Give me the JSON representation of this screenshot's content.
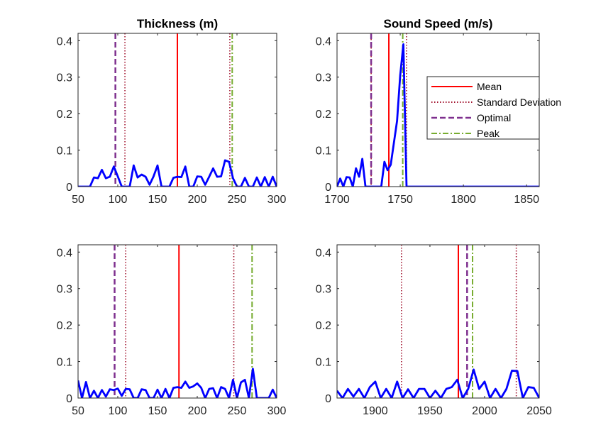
{
  "chart_data": [
    {
      "type": "line",
      "title": "Thickness (m)",
      "xlim": [
        50,
        300
      ],
      "ylim": [
        0,
        0.42
      ],
      "xticks": [
        50,
        100,
        150,
        200,
        250,
        300
      ],
      "yticks": [
        0,
        0.1,
        0.2,
        0.3,
        0.4
      ],
      "x": [
        50,
        55,
        60,
        65,
        70,
        75,
        80,
        85,
        90,
        95,
        100,
        105,
        110,
        115,
        120,
        125,
        130,
        135,
        140,
        145,
        150,
        155,
        160,
        165,
        170,
        175,
        180,
        185,
        190,
        195,
        200,
        205,
        210,
        215,
        220,
        225,
        230,
        235,
        240,
        245,
        250,
        255,
        260,
        265,
        270,
        275,
        280,
        285,
        290,
        295,
        300
      ],
      "y": [
        0,
        0,
        0,
        0,
        0.025,
        0.023,
        0.046,
        0.023,
        0.027,
        0.055,
        0.028,
        0,
        0,
        0,
        0.058,
        0.025,
        0.033,
        0.027,
        0.005,
        0.028,
        0.058,
        0,
        0,
        0,
        0.024,
        0.027,
        0.026,
        0.055,
        0,
        0,
        0.028,
        0.027,
        0.005,
        0.027,
        0.05,
        0.027,
        0.028,
        0.072,
        0.068,
        0.023,
        0,
        0,
        0.024,
        0,
        0,
        0.025,
        0,
        0.026,
        0,
        0.027,
        0
      ],
      "vlines": [
        {
          "kind": "mean",
          "x": 175
        },
        {
          "kind": "std",
          "x": 109
        },
        {
          "kind": "std",
          "x": 241
        },
        {
          "kind": "optimal",
          "x": 97
        },
        {
          "kind": "peak",
          "x": 244
        }
      ]
    },
    {
      "type": "line",
      "title": "Sound Speed (m/s)",
      "xlim": [
        1700,
        1860
      ],
      "ylim": [
        0,
        0.42
      ],
      "xticks": [
        1700,
        1750,
        1800,
        1850
      ],
      "yticks": [
        0,
        0.1,
        0.2,
        0.3,
        0.4
      ],
      "x": [
        1700,
        1702.5,
        1705,
        1707.5,
        1710,
        1712.5,
        1715,
        1717.5,
        1720,
        1722.5,
        1725,
        1727.5,
        1730,
        1732.5,
        1735,
        1737.5,
        1740,
        1742.5,
        1745,
        1747.5,
        1750,
        1752.5,
        1755,
        1757.5,
        1760,
        1770,
        1780,
        1800,
        1820,
        1840,
        1860
      ],
      "y": [
        0,
        0.022,
        0,
        0.026,
        0.025,
        0,
        0.05,
        0.027,
        0.076,
        0,
        0,
        0,
        0,
        0,
        0,
        0.068,
        0.045,
        0.06,
        0.12,
        0.18,
        0.305,
        0.39,
        0,
        0,
        0,
        0,
        0,
        0,
        0,
        0,
        0
      ],
      "vlines": [
        {
          "kind": "mean",
          "x": 1741
        },
        {
          "kind": "std",
          "x": 1727
        },
        {
          "kind": "std",
          "x": 1755
        },
        {
          "kind": "optimal",
          "x": 1727
        },
        {
          "kind": "peak",
          "x": 1752
        }
      ],
      "legend": {
        "location": "top-right",
        "entries": [
          "Mean",
          "Standard Deviation",
          "Optimal",
          "Peak"
        ]
      }
    },
    {
      "type": "line",
      "title": "",
      "xlim": [
        50,
        300
      ],
      "ylim": [
        0,
        0.42
      ],
      "xticks": [
        50,
        100,
        150,
        200,
        250,
        300
      ],
      "yticks": [
        0,
        0.1,
        0.2,
        0.3,
        0.4
      ],
      "x": [
        50,
        55,
        60,
        65,
        70,
        75,
        80,
        85,
        90,
        95,
        100,
        105,
        110,
        115,
        120,
        125,
        130,
        135,
        140,
        145,
        150,
        155,
        160,
        165,
        170,
        175,
        180,
        185,
        190,
        195,
        200,
        205,
        210,
        215,
        220,
        225,
        230,
        235,
        240,
        245,
        250,
        255,
        260,
        265,
        270,
        275,
        280,
        285,
        290,
        295,
        300
      ],
      "y": [
        0.048,
        0,
        0.044,
        0,
        0.02,
        0,
        0.022,
        0.004,
        0.024,
        0.022,
        0.026,
        0.006,
        0.025,
        0.024,
        0,
        0,
        0.024,
        0.022,
        0,
        0,
        0.023,
        0,
        0.025,
        0,
        0.028,
        0.03,
        0.028,
        0.045,
        0.028,
        0.032,
        0.04,
        0.028,
        0,
        0.025,
        0.027,
        0,
        0.03,
        0.025,
        0,
        0.05,
        0,
        0.043,
        0.05,
        0,
        0.08,
        0,
        0,
        0,
        0,
        0.023,
        0
      ],
      "vlines": [
        {
          "kind": "mean",
          "x": 177
        },
        {
          "kind": "std",
          "x": 110
        },
        {
          "kind": "std",
          "x": 246
        },
        {
          "kind": "optimal",
          "x": 96
        },
        {
          "kind": "peak",
          "x": 269
        }
      ]
    },
    {
      "type": "line",
      "title": "",
      "xlim": [
        1865,
        2050
      ],
      "ylim": [
        0,
        0.42
      ],
      "xticks": [
        1900,
        1950,
        2000,
        2050
      ],
      "yticks": [
        0,
        0.1,
        0.2,
        0.3,
        0.4
      ],
      "x": [
        1865,
        1870,
        1875,
        1880,
        1885,
        1890,
        1895,
        1900,
        1905,
        1910,
        1915,
        1920,
        1925,
        1930,
        1935,
        1940,
        1945,
        1950,
        1955,
        1960,
        1965,
        1970,
        1975,
        1980,
        1985,
        1990,
        1995,
        2000,
        2005,
        2010,
        2015,
        2020,
        2025,
        2030,
        2035,
        2040,
        2045,
        2050
      ],
      "y": [
        0.02,
        0,
        0.025,
        0.004,
        0.025,
        0,
        0.03,
        0.045,
        0,
        0.025,
        0,
        0.045,
        0,
        0.024,
        0,
        0.025,
        0.025,
        0,
        0.02,
        0,
        0.025,
        0.03,
        0.05,
        0,
        0.025,
        0.078,
        0.025,
        0.045,
        0,
        0.025,
        0,
        0.025,
        0.075,
        0.074,
        0,
        0.03,
        0.028,
        0
      ],
      "vlines": [
        {
          "kind": "mean",
          "x": 1976
        },
        {
          "kind": "std",
          "x": 1924
        },
        {
          "kind": "std",
          "x": 2029
        },
        {
          "kind": "optimal",
          "x": 1984
        },
        {
          "kind": "peak",
          "x": 1989
        }
      ]
    }
  ],
  "styles": {
    "series_color": "#0000ff",
    "mean_color": "#ff0000",
    "std_color": "#a2142f",
    "optimal_color": "#7e2f8e",
    "peak_color": "#77ac30",
    "axis_color": "#262626"
  }
}
